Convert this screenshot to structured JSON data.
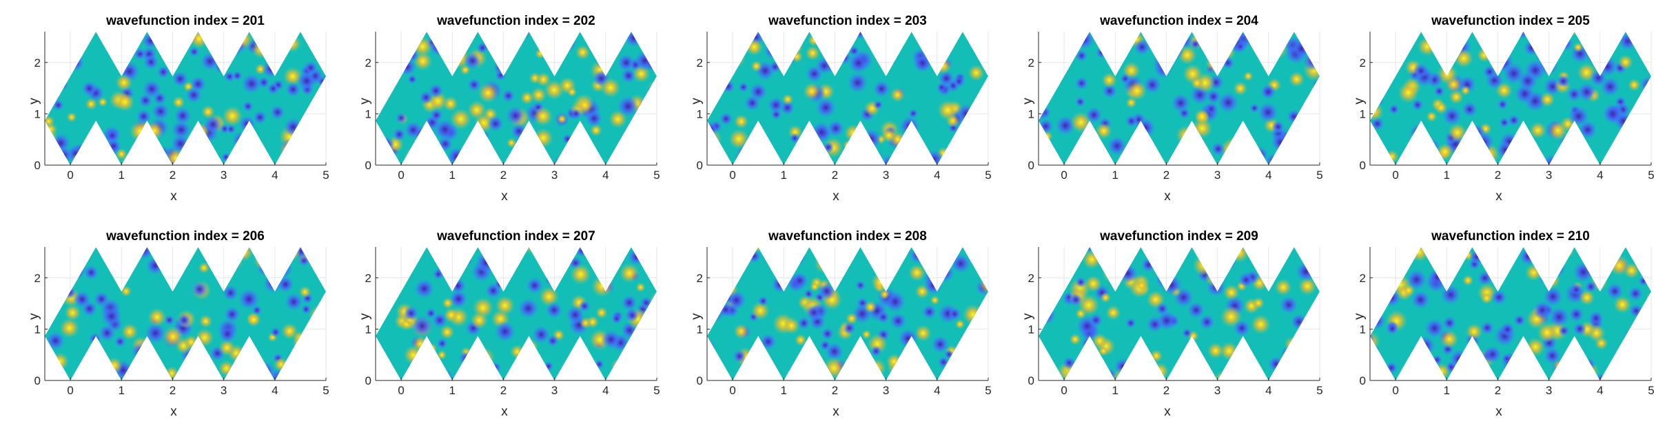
{
  "colors": {
    "background": "#ffffff",
    "axis": "#262626",
    "grid": "#e6e6e6",
    "colormap": "parula",
    "colormap_stops": [
      "#3e26a8",
      "#4560f5",
      "#2c95f5",
      "#13beb7",
      "#6ccc6b",
      "#ecb934",
      "#f9fb15"
    ]
  },
  "chart_data": [
    {
      "type": "heatmap",
      "title": "wavefunction index = 201",
      "index": 201,
      "xlabel": "x",
      "ylabel": "y",
      "xlim": [
        -0.5,
        5
      ],
      "ylim": [
        0,
        2.6
      ],
      "xticks": [
        "0",
        "1",
        "2",
        "3",
        "4",
        "5"
      ],
      "yticks": [
        "0",
        "1",
        "2"
      ],
      "grid": true,
      "colormap": "parula"
    },
    {
      "type": "heatmap",
      "title": "wavefunction index = 202",
      "index": 202,
      "xlabel": "x",
      "ylabel": "y",
      "xlim": [
        -0.5,
        5
      ],
      "ylim": [
        0,
        2.6
      ],
      "xticks": [
        "0",
        "1",
        "2",
        "3",
        "4",
        "5"
      ],
      "yticks": [
        "0",
        "1",
        "2"
      ],
      "grid": true,
      "colormap": "parula"
    },
    {
      "type": "heatmap",
      "title": "wavefunction index = 203",
      "index": 203,
      "xlabel": "x",
      "ylabel": "y",
      "xlim": [
        -0.5,
        5
      ],
      "ylim": [
        0,
        2.6
      ],
      "xticks": [
        "0",
        "1",
        "2",
        "3",
        "4",
        "5"
      ],
      "yticks": [
        "0",
        "1",
        "2"
      ],
      "grid": true,
      "colormap": "parula"
    },
    {
      "type": "heatmap",
      "title": "wavefunction index = 204",
      "index": 204,
      "xlabel": "x",
      "ylabel": "y",
      "xlim": [
        -0.5,
        5
      ],
      "ylim": [
        0,
        2.6
      ],
      "xticks": [
        "0",
        "1",
        "2",
        "3",
        "4",
        "5"
      ],
      "yticks": [
        "0",
        "1",
        "2"
      ],
      "grid": true,
      "colormap": "parula"
    },
    {
      "type": "heatmap",
      "title": "wavefunction index = 205",
      "index": 205,
      "xlabel": "x",
      "ylabel": "y",
      "xlim": [
        -0.5,
        5
      ],
      "ylim": [
        0,
        2.6
      ],
      "xticks": [
        "0",
        "1",
        "2",
        "3",
        "4",
        "5"
      ],
      "yticks": [
        "0",
        "1",
        "2"
      ],
      "grid": true,
      "colormap": "parula"
    },
    {
      "type": "heatmap",
      "title": "wavefunction index = 206",
      "index": 206,
      "xlabel": "x",
      "ylabel": "y",
      "xlim": [
        -0.5,
        5
      ],
      "ylim": [
        0,
        2.6
      ],
      "xticks": [
        "0",
        "1",
        "2",
        "3",
        "4",
        "5"
      ],
      "yticks": [
        "0",
        "1",
        "2"
      ],
      "grid": true,
      "colormap": "parula"
    },
    {
      "type": "heatmap",
      "title": "wavefunction index = 207",
      "index": 207,
      "xlabel": "x",
      "ylabel": "y",
      "xlim": [
        -0.5,
        5
      ],
      "ylim": [
        0,
        2.6
      ],
      "xticks": [
        "0",
        "1",
        "2",
        "3",
        "4",
        "5"
      ],
      "yticks": [
        "0",
        "1",
        "2"
      ],
      "grid": true,
      "colormap": "parula"
    },
    {
      "type": "heatmap",
      "title": "wavefunction index = 208",
      "index": 208,
      "xlabel": "x",
      "ylabel": "y",
      "xlim": [
        -0.5,
        5
      ],
      "ylim": [
        0,
        2.6
      ],
      "xticks": [
        "0",
        "1",
        "2",
        "3",
        "4",
        "5"
      ],
      "yticks": [
        "0",
        "1",
        "2"
      ],
      "grid": true,
      "colormap": "parula"
    },
    {
      "type": "heatmap",
      "title": "wavefunction index = 209",
      "index": 209,
      "xlabel": "x",
      "ylabel": "y",
      "xlim": [
        -0.5,
        5
      ],
      "ylim": [
        0,
        2.6
      ],
      "xticks": [
        "0",
        "1",
        "2",
        "3",
        "4",
        "5"
      ],
      "yticks": [
        "0",
        "1",
        "2"
      ],
      "grid": true,
      "colormap": "parula"
    },
    {
      "type": "heatmap",
      "title": "wavefunction index = 210",
      "index": 210,
      "xlabel": "x",
      "ylabel": "y",
      "xlim": [
        -0.5,
        5
      ],
      "ylim": [
        0,
        2.6
      ],
      "xticks": [
        "0",
        "1",
        "2",
        "3",
        "4",
        "5"
      ],
      "yticks": [
        "0",
        "1",
        "2"
      ],
      "grid": true,
      "colormap": "parula"
    }
  ]
}
